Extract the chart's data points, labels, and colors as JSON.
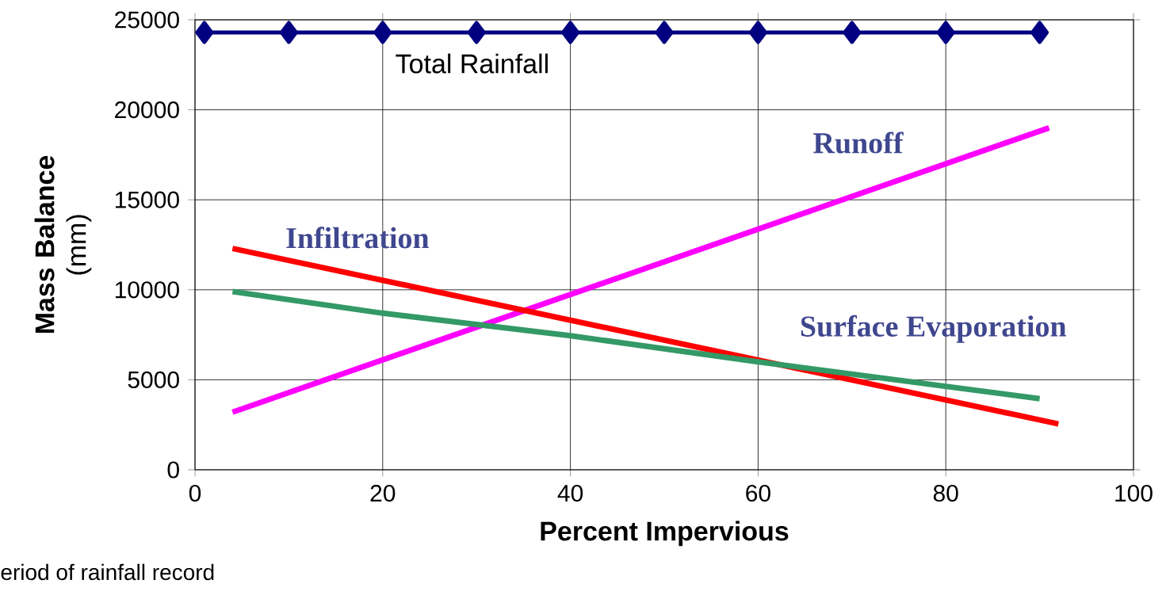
{
  "chart_data": {
    "type": "line",
    "xlabel": "Percent Impervious",
    "ylabel": "**Mass Balance** (mm)",
    "xlim": [
      0,
      100
    ],
    "xticks": [
      0,
      20,
      40,
      60,
      80,
      100
    ],
    "ylim": [
      0,
      25000
    ],
    "yticks": [
      0,
      5000,
      10000,
      15000,
      20000,
      25000
    ],
    "grid": true,
    "legend": false,
    "line_style": "solid",
    "annotations": [
      "eriod of rainfall record"
    ],
    "series": [
      {
        "name": "Total Rainfall",
        "color": "#000080",
        "marker": "diamond",
        "x": [
          1,
          10,
          20,
          30,
          40,
          50,
          60,
          70,
          80,
          90
        ],
        "values": [
          24300,
          24300,
          24300,
          24300,
          24300,
          24300,
          24300,
          24300,
          24300,
          24300
        ]
      },
      {
        "name": "Runoff",
        "color": "#ff00ff",
        "marker": "none",
        "x": [
          4,
          91
        ],
        "values": [
          3200,
          19000
        ]
      },
      {
        "name": "Infiltration",
        "color": "#ff0000",
        "marker": "none",
        "x": [
          4,
          92
        ],
        "values": [
          12300,
          2550
        ]
      },
      {
        "name": "Surface Evaporation",
        "color": "#339966",
        "marker": "none",
        "x": [
          4,
          20,
          40,
          60,
          90
        ],
        "values": [
          9900,
          8700,
          7450,
          6000,
          3950
        ]
      }
    ]
  }
}
